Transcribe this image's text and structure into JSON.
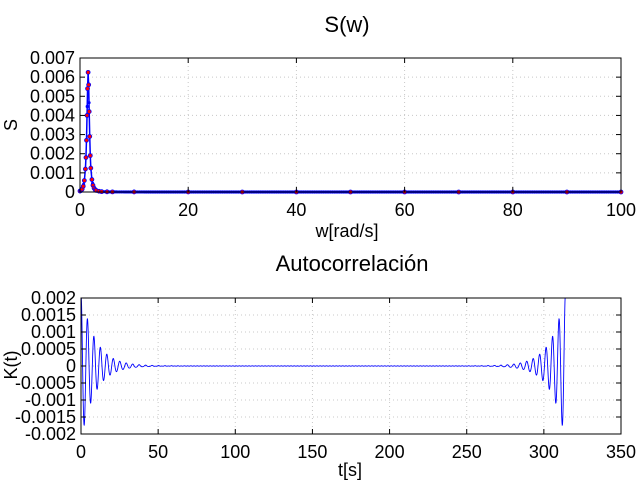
{
  "chart_data": [
    {
      "type": "line",
      "title": "S(w)",
      "xlabel": "w[rad/s]",
      "ylabel": "S",
      "xlim": [
        0,
        100
      ],
      "ylim": [
        0,
        0.007
      ],
      "xticks": [
        0,
        20,
        40,
        60,
        80,
        100
      ],
      "xtick_labels": [
        "0",
        "20",
        "40",
        "60",
        "80",
        "100"
      ],
      "yticks": [
        0,
        0.001,
        0.002,
        0.003,
        0.004,
        0.005,
        0.006,
        0.007
      ],
      "ytick_labels": [
        "0",
        "0.001",
        "0.002",
        "0.003",
        "0.004",
        "0.005",
        "0.006",
        "0.007"
      ],
      "grid": true,
      "series": [
        {
          "color": "#0000ff",
          "marker_color": "#ff0000",
          "x": [
            0,
            0.2,
            0.4,
            0.6,
            0.8,
            1.0,
            1.1,
            1.2,
            1.3,
            1.4,
            1.5,
            1.6,
            1.7,
            1.8,
            1.9,
            2.0,
            2.2,
            2.4,
            2.6,
            2.8,
            3.0,
            3.5,
            4.0,
            5.0,
            6.0,
            10,
            20,
            30,
            40,
            50,
            60,
            70,
            80,
            90,
            100
          ],
          "y": [
            5e-05,
            8e-05,
            0.00015,
            0.0003,
            0.0006,
            0.0012,
            0.0018,
            0.0027,
            0.004,
            0.0054,
            0.00625,
            0.0056,
            0.0042,
            0.0029,
            0.0019,
            0.00125,
            0.00065,
            0.00035,
            0.0002,
            0.00012,
            8e-05,
            4e-05,
            2e-05,
            1e-05,
            5e-06,
            2e-06,
            1e-06,
            0,
            0,
            0,
            0,
            0,
            0,
            0,
            0
          ]
        }
      ]
    },
    {
      "type": "line",
      "title": "Autocorrelación",
      "xlabel": "t[s]",
      "ylabel": "K(t)",
      "xlim": [
        0,
        350
      ],
      "ylim": [
        -0.002,
        0.002
      ],
      "xticks": [
        0,
        50,
        100,
        150,
        200,
        250,
        300,
        350
      ],
      "xtick_labels": [
        "0",
        "50",
        "100",
        "150",
        "200",
        "250",
        "300",
        "350"
      ],
      "yticks": [
        -0.002,
        -0.0015,
        -0.001,
        -0.0005,
        0,
        0.0005,
        0.001,
        0.0015,
        0.002
      ],
      "ytick_labels": [
        "-0.002",
        "-0.0015",
        "-0.001",
        "-0.0005",
        "0",
        "0.0005",
        "0.001",
        "0.0015",
        "0.002"
      ],
      "grid": true,
      "series": [
        {
          "color": "#0000ff",
          "shape": "damped oscillation near t=0, near zero in the middle, mirrored growing oscillation near t=314",
          "t_end": 314,
          "amplitude_start": 0.0022,
          "decay_time": 9,
          "angular_frequency": 1.5
        }
      ]
    }
  ]
}
